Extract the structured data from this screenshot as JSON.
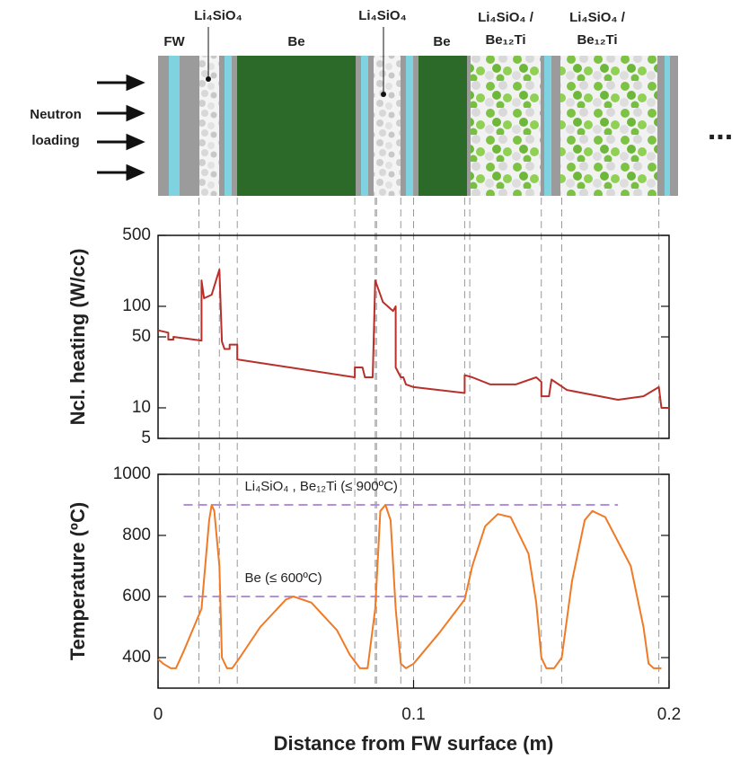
{
  "diagram": {
    "labels": [
      "FW",
      "Li₄SiO₄",
      "Be",
      "Li₄SiO₄",
      "Be"
    ],
    "mixed_labels": [
      [
        "Li₄SiO₄ /",
        "Be₁₂Ti"
      ],
      [
        "Li₄SiO₄ /",
        "Be₁₂Ti"
      ]
    ],
    "side_label": [
      "Neutron",
      "loading"
    ],
    "continuation": "..."
  },
  "chart_data": [
    {
      "type": "line",
      "ylabel": "Ncl. heating (W/cc)",
      "log_y": true,
      "color": "#b8302a",
      "xlim": [
        0,
        0.2
      ],
      "ylim": [
        5,
        500
      ],
      "yticks": [
        5,
        10,
        50,
        100,
        500
      ],
      "boundaries": [
        0.016,
        0.024,
        0.031,
        0.077,
        0.085,
        0.0855,
        0.095,
        0.1,
        0.12,
        0.122,
        0.15,
        0.158,
        0.196
      ],
      "x": [
        0,
        0.004,
        0.004,
        0.006,
        0.006,
        0.017,
        0.017,
        0.018,
        0.021,
        0.024,
        0.025,
        0.026,
        0.028,
        0.028,
        0.031,
        0.031,
        0.077,
        0.077,
        0.08,
        0.081,
        0.084,
        0.085,
        0.088,
        0.092,
        0.093,
        0.093,
        0.095,
        0.096,
        0.097,
        0.1,
        0.12,
        0.12,
        0.123,
        0.13,
        0.14,
        0.148,
        0.15,
        0.15,
        0.153,
        0.154,
        0.16,
        0.18,
        0.19,
        0.196,
        0.197,
        0.2
      ],
      "values": [
        58,
        55,
        47,
        47,
        50,
        46,
        180,
        120,
        130,
        230,
        45,
        38,
        38,
        42,
        42,
        30,
        20,
        25,
        25,
        20,
        20,
        180,
        110,
        90,
        100,
        25,
        20,
        20,
        17,
        16,
        14,
        21,
        20,
        17,
        17,
        20,
        18,
        13,
        13,
        19,
        15,
        12,
        13,
        16,
        10,
        10
      ]
    },
    {
      "type": "line",
      "ylabel": "Temperature (ºC)",
      "xlabel": "Distance from FW surface  (m)",
      "color": "#f07a26",
      "xlim": [
        0,
        0.2
      ],
      "xticks": [
        0,
        0.1,
        0.2
      ],
      "ylim": [
        300,
        1000
      ],
      "yticks": [
        400,
        600,
        800,
        1000
      ],
      "reference_lines": [
        {
          "value": 900,
          "xrange": [
            0.01,
            0.18
          ],
          "label": "Li₄SiO₄ , Be₁₂Ti (≤ 900ºC)"
        },
        {
          "value": 600,
          "xrange": [
            0.01,
            0.12
          ],
          "label": "Be (≤ 600ºC)"
        }
      ],
      "x": [
        0,
        0.002,
        0.005,
        0.007,
        0.01,
        0.017,
        0.02,
        0.021,
        0.022,
        0.024,
        0.025,
        0.027,
        0.029,
        0.032,
        0.04,
        0.05,
        0.053,
        0.06,
        0.07,
        0.075,
        0.079,
        0.082,
        0.085,
        0.087,
        0.089,
        0.091,
        0.093,
        0.095,
        0.097,
        0.1,
        0.11,
        0.12,
        0.123,
        0.128,
        0.133,
        0.138,
        0.145,
        0.148,
        0.15,
        0.152,
        0.155,
        0.158,
        0.162,
        0.167,
        0.17,
        0.175,
        0.185,
        0.19,
        0.192,
        0.194,
        0.197
      ],
      "values": [
        395,
        380,
        365,
        365,
        420,
        560,
        850,
        900,
        880,
        700,
        400,
        365,
        365,
        400,
        500,
        590,
        600,
        580,
        490,
        410,
        365,
        365,
        560,
        880,
        900,
        850,
        560,
        380,
        365,
        380,
        480,
        590,
        700,
        830,
        870,
        860,
        740,
        580,
        400,
        365,
        365,
        400,
        650,
        850,
        880,
        860,
        700,
        500,
        380,
        365,
        365
      ]
    }
  ]
}
